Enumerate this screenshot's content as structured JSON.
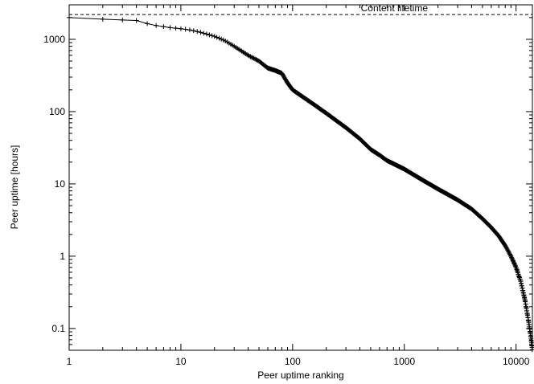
{
  "chart_data": {
    "type": "scatter",
    "title": "",
    "xlabel": "Peer uptime ranking",
    "ylabel": "Peer uptime [hours]",
    "x_scale": "log",
    "y_scale": "log",
    "xlim": [
      1,
      14000
    ],
    "ylim": [
      0.05,
      3000
    ],
    "x_ticks": [
      {
        "value": 1,
        "label": "1"
      },
      {
        "value": 10,
        "label": "10"
      },
      {
        "value": 100,
        "label": "100"
      },
      {
        "value": 1000,
        "label": "1000"
      },
      {
        "value": 10000,
        "label": "10000"
      }
    ],
    "y_ticks": [
      {
        "value": 0.1,
        "label": "0.1"
      },
      {
        "value": 1,
        "label": "1"
      },
      {
        "value": 10,
        "label": "10"
      },
      {
        "value": 100,
        "label": "100"
      },
      {
        "value": 1000,
        "label": "1000"
      }
    ],
    "grid": false,
    "legend": "none",
    "reference_line": {
      "y": 2200,
      "label": "Content lifetime",
      "style": "dashed"
    },
    "series": [
      {
        "points": [
          [
            1,
            2000
          ],
          [
            2,
            1900
          ],
          [
            3,
            1850
          ],
          [
            4,
            1820
          ],
          [
            5,
            1650
          ],
          [
            6,
            1550
          ],
          [
            7,
            1500
          ],
          [
            8,
            1450
          ],
          [
            10,
            1400
          ],
          [
            12,
            1350
          ],
          [
            15,
            1250
          ],
          [
            20,
            1100
          ],
          [
            25,
            950
          ],
          [
            30,
            800
          ],
          [
            40,
            600
          ],
          [
            50,
            500
          ],
          [
            60,
            400
          ],
          [
            70,
            370
          ],
          [
            80,
            340
          ],
          [
            90,
            250
          ],
          [
            100,
            200
          ],
          [
            150,
            130
          ],
          [
            200,
            95
          ],
          [
            300,
            60
          ],
          [
            400,
            42
          ],
          [
            500,
            30
          ],
          [
            600,
            25
          ],
          [
            700,
            21
          ],
          [
            800,
            19
          ],
          [
            1000,
            16
          ],
          [
            1500,
            11
          ],
          [
            2000,
            8.5
          ],
          [
            3000,
            6
          ],
          [
            4000,
            4.5
          ],
          [
            5000,
            3.3
          ],
          [
            6000,
            2.5
          ],
          [
            7000,
            1.9
          ],
          [
            8000,
            1.4
          ],
          [
            9000,
            1.0
          ],
          [
            10000,
            0.7
          ],
          [
            11000,
            0.45
          ],
          [
            12000,
            0.25
          ],
          [
            13000,
            0.12
          ],
          [
            13500,
            0.08
          ],
          [
            14000,
            0.05
          ]
        ]
      }
    ]
  }
}
